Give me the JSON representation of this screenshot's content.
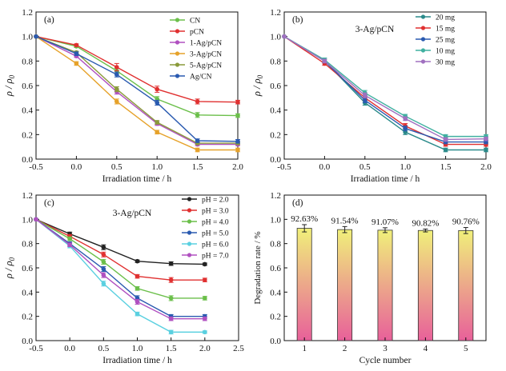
{
  "chart_data": [
    {
      "id": "a",
      "type": "line",
      "panel_label": "(a)",
      "inset_text": "",
      "xlabel": "Irradiation time / h",
      "ylabel_main": "ρ / ρ",
      "ylabel_sub": "0",
      "xlim": [
        -0.5,
        2.0
      ],
      "ylim": [
        0.0,
        1.2
      ],
      "xticks": [
        -0.5,
        0.0,
        0.5,
        1.0,
        1.5,
        2.0
      ],
      "yticks": [
        0.0,
        0.2,
        0.4,
        0.6,
        0.8,
        1.0,
        1.2
      ],
      "legend": "top-right",
      "x": [
        -0.5,
        0.0,
        0.5,
        1.0,
        1.5,
        2.0
      ],
      "series": [
        {
          "name": "CN",
          "color": "#6bbf4a",
          "values": [
            1.0,
            0.92,
            0.72,
            0.49,
            0.36,
            0.355
          ],
          "err": [
            0,
            0.01,
            0.02,
            0.02,
            0.02,
            0.015
          ]
        },
        {
          "name": "pCN",
          "color": "#e03030",
          "values": [
            1.0,
            0.93,
            0.75,
            0.57,
            0.47,
            0.465
          ],
          "err": [
            0,
            0.01,
            0.03,
            0.025,
            0.02,
            0.015
          ]
        },
        {
          "name": "1-Ag/pCN",
          "color": "#b050c0",
          "values": [
            1.0,
            0.84,
            0.55,
            0.29,
            0.12,
            0.12
          ],
          "err": [
            0,
            0.01,
            0.02,
            0.015,
            0.01,
            0.01
          ]
        },
        {
          "name": "3-Ag/pCN",
          "color": "#e6a22a",
          "values": [
            1.0,
            0.78,
            0.47,
            0.22,
            0.075,
            0.075
          ],
          "err": [
            0,
            0.015,
            0.02,
            0.015,
            0.015,
            0.015
          ]
        },
        {
          "name": "5-Ag/pCN",
          "color": "#8a9a3a",
          "values": [
            1.0,
            0.87,
            0.57,
            0.3,
            0.13,
            0.13
          ],
          "err": [
            0,
            0.01,
            0.02,
            0.015,
            0.01,
            0.01
          ]
        },
        {
          "name": "Ag/CN",
          "color": "#2a5ab0",
          "values": [
            1.0,
            0.86,
            0.69,
            0.46,
            0.15,
            0.145
          ],
          "err": [
            0,
            0.015,
            0.02,
            0.02,
            0.015,
            0.015
          ]
        }
      ]
    },
    {
      "id": "b",
      "type": "line",
      "panel_label": "(b)",
      "inset_text": "3-Ag/pCN",
      "xlabel": "Irradiation time / h",
      "ylabel_main": "ρ / ρ",
      "ylabel_sub": "0",
      "xlim": [
        -0.5,
        2.0
      ],
      "ylim": [
        0.0,
        1.2
      ],
      "xticks": [
        -0.5,
        0.0,
        0.5,
        1.0,
        1.5,
        2.0
      ],
      "yticks": [
        0.0,
        0.2,
        0.4,
        0.6,
        0.8,
        1.0,
        1.2
      ],
      "legend": "top-right",
      "x": [
        -0.5,
        0.0,
        0.5,
        1.0,
        1.5,
        2.0
      ],
      "series": [
        {
          "name": "20 mg",
          "color": "#2a8a8a",
          "values": [
            1.0,
            0.8,
            0.46,
            0.22,
            0.075,
            0.075
          ],
          "err": [
            0,
            0.015,
            0.02,
            0.02,
            0.015,
            0.015
          ]
        },
        {
          "name": "15 mg",
          "color": "#e03030",
          "values": [
            1.0,
            0.78,
            0.5,
            0.27,
            0.12,
            0.12
          ],
          "err": [
            0,
            0.015,
            0.02,
            0.02,
            0.015,
            0.015
          ]
        },
        {
          "name": "25 mg",
          "color": "#2a5ab0",
          "values": [
            1.0,
            0.8,
            0.48,
            0.25,
            0.14,
            0.14
          ],
          "err": [
            0,
            0.015,
            0.02,
            0.02,
            0.015,
            0.015
          ]
        },
        {
          "name": "10 mg",
          "color": "#40b0a0",
          "values": [
            1.0,
            0.81,
            0.54,
            0.35,
            0.185,
            0.185
          ],
          "err": [
            0,
            0.015,
            0.02,
            0.015,
            0.015,
            0.015
          ]
        },
        {
          "name": "30 mg",
          "color": "#a070c0",
          "values": [
            1.0,
            0.8,
            0.52,
            0.33,
            0.16,
            0.165
          ],
          "err": [
            0,
            0.015,
            0.02,
            0.015,
            0.015,
            0.015
          ]
        }
      ]
    },
    {
      "id": "c",
      "type": "line",
      "panel_label": "(c)",
      "inset_text": "3-Ag/pCN",
      "xlabel": "Irradiation time / h",
      "ylabel_main": "ρ / ρ",
      "ylabel_sub": "0",
      "xlim": [
        -0.5,
        2.5
      ],
      "ylim": [
        0.0,
        1.2
      ],
      "xticks": [
        -0.5,
        0.0,
        0.5,
        1.0,
        1.5,
        2.0,
        2.5
      ],
      "yticks": [
        0.0,
        0.2,
        0.4,
        0.6,
        0.8,
        1.0,
        1.2
      ],
      "legend": "top-right",
      "x": [
        -0.5,
        0.0,
        0.5,
        1.0,
        1.5,
        2.0
      ],
      "series": [
        {
          "name": "pH = 2.0",
          "color": "#222222",
          "values": [
            1.0,
            0.88,
            0.77,
            0.655,
            0.635,
            0.63
          ],
          "err": [
            0,
            0.015,
            0.02,
            0.01,
            0.015,
            0.01
          ]
        },
        {
          "name": "pH = 3.0",
          "color": "#e03030",
          "values": [
            1.0,
            0.86,
            0.71,
            0.53,
            0.5,
            0.5
          ],
          "err": [
            0,
            0.015,
            0.02,
            0.015,
            0.02,
            0.015
          ]
        },
        {
          "name": "pH = 4.0",
          "color": "#6bbf4a",
          "values": [
            1.0,
            0.84,
            0.65,
            0.43,
            0.35,
            0.35
          ],
          "err": [
            0,
            0.015,
            0.02,
            0.015,
            0.02,
            0.015
          ]
        },
        {
          "name": "pH = 5.0",
          "color": "#2a5ab0",
          "values": [
            1.0,
            0.8,
            0.59,
            0.35,
            0.2,
            0.2
          ],
          "err": [
            0,
            0.015,
            0.02,
            0.02,
            0.015,
            0.015
          ]
        },
        {
          "name": "pH = 6.0",
          "color": "#5ad0e0",
          "values": [
            1.0,
            0.78,
            0.47,
            0.22,
            0.07,
            0.07
          ],
          "err": [
            0,
            0.015,
            0.02,
            0.015,
            0.015,
            0.01
          ]
        },
        {
          "name": "pH = 7.0",
          "color": "#b050c0",
          "values": [
            1.0,
            0.79,
            0.54,
            0.32,
            0.18,
            0.18
          ],
          "err": [
            0,
            0.015,
            0.02,
            0.02,
            0.015,
            0.015
          ]
        }
      ]
    },
    {
      "id": "d",
      "type": "bar",
      "panel_label": "(d)",
      "xlabel": "Cycle number",
      "ylabel_main": "Degradation rate / %",
      "ylim": [
        0.0,
        1.2
      ],
      "yticks": [
        0.0,
        0.2,
        0.4,
        0.6,
        0.8,
        1.0,
        1.2
      ],
      "categories": [
        "1",
        "2",
        "3",
        "4",
        "5"
      ],
      "values": [
        0.9263,
        0.9154,
        0.9107,
        0.9082,
        0.9076
      ],
      "err": [
        0.03,
        0.025,
        0.02,
        0.012,
        0.025
      ],
      "value_labels": [
        "92.63%",
        "91.54%",
        "91.07%",
        "90.82%",
        "90.76%"
      ],
      "bar_gradient_top": "#f0f07a",
      "bar_gradient_bottom": "#e8609a"
    }
  ]
}
